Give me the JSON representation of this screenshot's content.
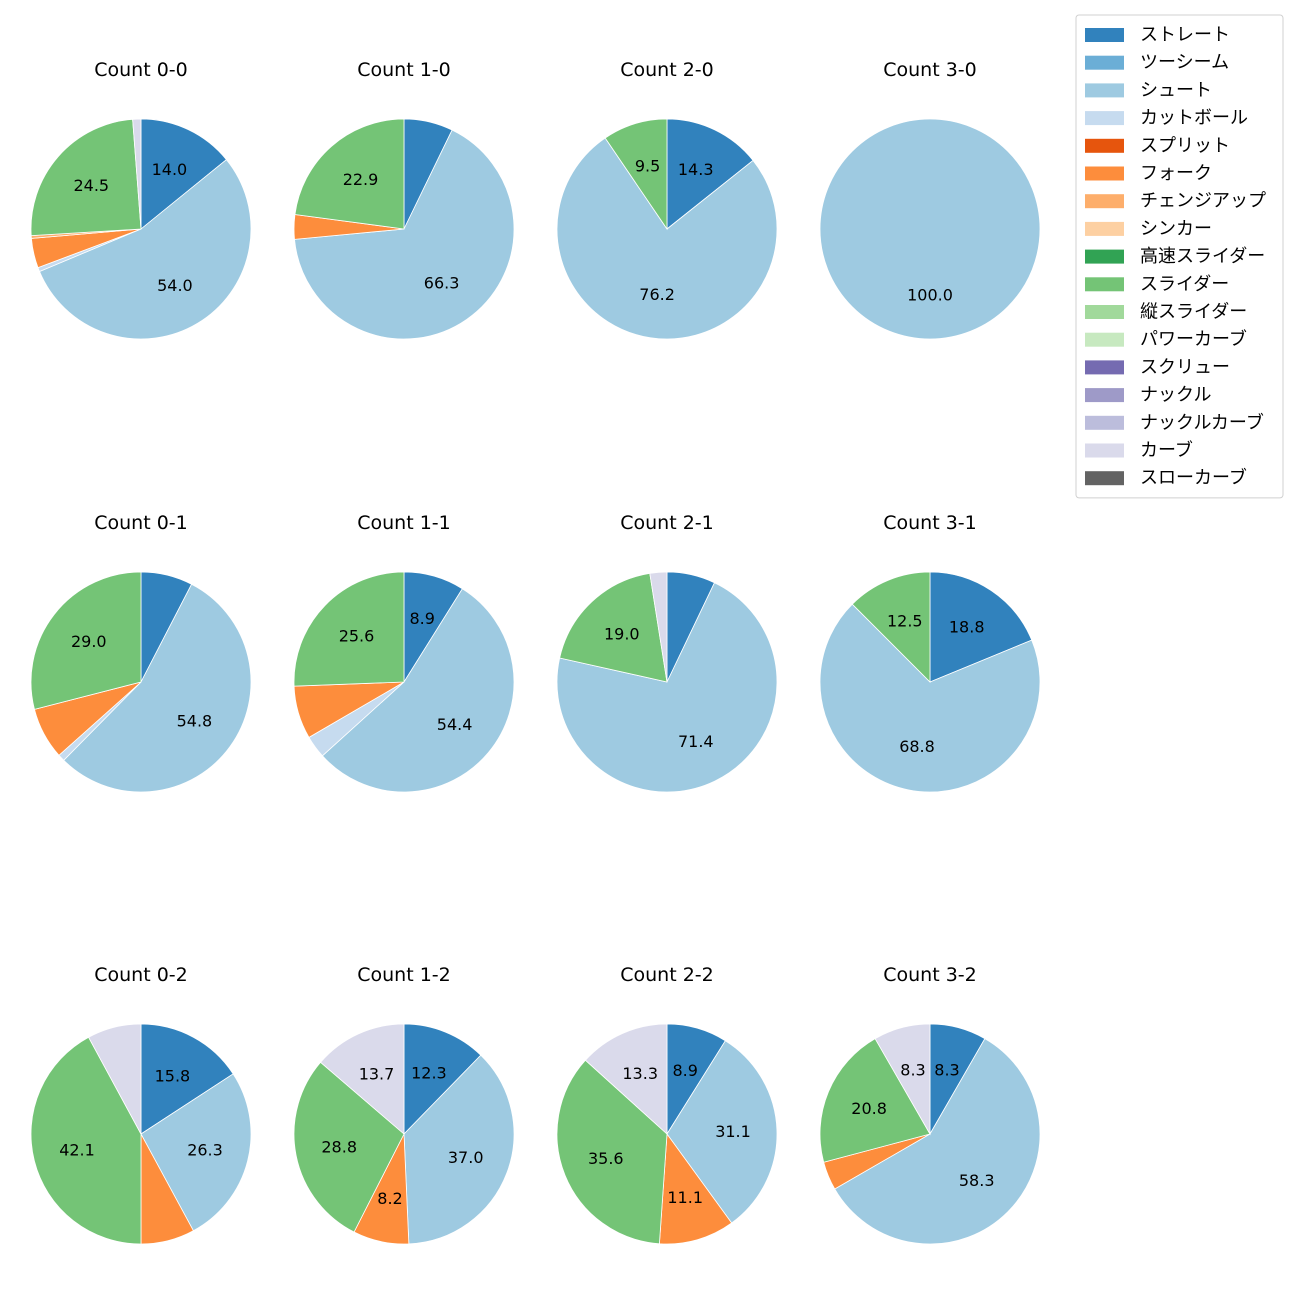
{
  "chart_data": {
    "type": "pie",
    "pitch_types": [
      {
        "name": "ストレート",
        "color": "#3182bd"
      },
      {
        "name": "ツーシーム",
        "color": "#6baed6"
      },
      {
        "name": "シュート",
        "color": "#9ecae1"
      },
      {
        "name": "カットボール",
        "color": "#c6dbef"
      },
      {
        "name": "スプリット",
        "color": "#e6550d"
      },
      {
        "name": "フォーク",
        "color": "#fd8d3c"
      },
      {
        "name": "チェンジアップ",
        "color": "#fdae6b"
      },
      {
        "name": "シンカー",
        "color": "#fdd0a2"
      },
      {
        "name": "高速スライダー",
        "color": "#31a354"
      },
      {
        "name": "スライダー",
        "color": "#74c476"
      },
      {
        "name": "縦スライダー",
        "color": "#a1d99b"
      },
      {
        "name": "パワーカーブ",
        "color": "#c7e9c0"
      },
      {
        "name": "スクリュー",
        "color": "#756bb1"
      },
      {
        "name": "ナックル",
        "color": "#9e9ac8"
      },
      {
        "name": "ナックルカーブ",
        "color": "#bcbddc"
      },
      {
        "name": "カーブ",
        "color": "#dadaeb"
      },
      {
        "name": "スローカーブ",
        "color": "#636363"
      }
    ],
    "legend_position": "top-right",
    "pies": [
      {
        "title": "Count 0-0",
        "slices": [
          {
            "pitch": "ストレート",
            "value": 14.0,
            "label": "14.0"
          },
          {
            "pitch": "シュート",
            "value": 54.0,
            "label": "54.0"
          },
          {
            "pitch": "カットボール",
            "value": 0.6,
            "label": ""
          },
          {
            "pitch": "フォーク",
            "value": 4.3,
            "label": ""
          },
          {
            "pitch": "チェンジアップ",
            "value": 0.4,
            "label": ""
          },
          {
            "pitch": "スライダー",
            "value": 24.5,
            "label": "24.5"
          },
          {
            "pitch": "カーブ",
            "value": 1.2,
            "label": ""
          }
        ]
      },
      {
        "title": "Count 1-0",
        "slices": [
          {
            "pitch": "ストレート",
            "value": 7.2,
            "label": ""
          },
          {
            "pitch": "シュート",
            "value": 66.3,
            "label": "66.3"
          },
          {
            "pitch": "フォーク",
            "value": 3.6,
            "label": ""
          },
          {
            "pitch": "スライダー",
            "value": 22.9,
            "label": "22.9"
          }
        ]
      },
      {
        "title": "Count 2-0",
        "slices": [
          {
            "pitch": "ストレート",
            "value": 14.3,
            "label": "14.3"
          },
          {
            "pitch": "シュート",
            "value": 76.2,
            "label": "76.2"
          },
          {
            "pitch": "スライダー",
            "value": 9.5,
            "label": "9.5"
          }
        ]
      },
      {
        "title": "Count 3-0",
        "slices": [
          {
            "pitch": "シュート",
            "value": 100.0,
            "label": "100.0"
          }
        ]
      },
      {
        "title": "Count 0-1",
        "slices": [
          {
            "pitch": "ストレート",
            "value": 7.6,
            "label": ""
          },
          {
            "pitch": "シュート",
            "value": 54.8,
            "label": "54.8"
          },
          {
            "pitch": "カットボール",
            "value": 1.0,
            "label": ""
          },
          {
            "pitch": "フォーク",
            "value": 7.6,
            "label": ""
          },
          {
            "pitch": "スライダー",
            "value": 29.0,
            "label": "29.0"
          }
        ]
      },
      {
        "title": "Count 1-1",
        "slices": [
          {
            "pitch": "ストレート",
            "value": 8.9,
            "label": "8.9"
          },
          {
            "pitch": "シュート",
            "value": 54.4,
            "label": "54.4"
          },
          {
            "pitch": "カットボール",
            "value": 3.3,
            "label": ""
          },
          {
            "pitch": "フォーク",
            "value": 7.8,
            "label": ""
          },
          {
            "pitch": "スライダー",
            "value": 25.6,
            "label": "25.6"
          }
        ]
      },
      {
        "title": "Count 2-1",
        "slices": [
          {
            "pitch": "ストレート",
            "value": 7.1,
            "label": ""
          },
          {
            "pitch": "シュート",
            "value": 71.4,
            "label": "71.4"
          },
          {
            "pitch": "スライダー",
            "value": 19.0,
            "label": "19.0"
          },
          {
            "pitch": "カーブ",
            "value": 2.5,
            "label": ""
          }
        ]
      },
      {
        "title": "Count 3-1",
        "slices": [
          {
            "pitch": "ストレート",
            "value": 18.8,
            "label": "18.8"
          },
          {
            "pitch": "シュート",
            "value": 68.8,
            "label": "68.8"
          },
          {
            "pitch": "スライダー",
            "value": 12.5,
            "label": "12.5"
          }
        ]
      },
      {
        "title": "Count 0-2",
        "slices": [
          {
            "pitch": "ストレート",
            "value": 15.8,
            "label": "15.8"
          },
          {
            "pitch": "シュート",
            "value": 26.3,
            "label": "26.3"
          },
          {
            "pitch": "フォーク",
            "value": 7.9,
            "label": ""
          },
          {
            "pitch": "スライダー",
            "value": 42.1,
            "label": "42.1"
          },
          {
            "pitch": "カーブ",
            "value": 7.9,
            "label": ""
          }
        ]
      },
      {
        "title": "Count 1-2",
        "slices": [
          {
            "pitch": "ストレート",
            "value": 12.3,
            "label": "12.3"
          },
          {
            "pitch": "シュート",
            "value": 37.0,
            "label": "37.0"
          },
          {
            "pitch": "フォーク",
            "value": 8.2,
            "label": "8.2"
          },
          {
            "pitch": "スライダー",
            "value": 28.8,
            "label": "28.8"
          },
          {
            "pitch": "カーブ",
            "value": 13.7,
            "label": "13.7"
          }
        ]
      },
      {
        "title": "Count 2-2",
        "slices": [
          {
            "pitch": "ストレート",
            "value": 8.9,
            "label": "8.9"
          },
          {
            "pitch": "シュート",
            "value": 31.1,
            "label": "31.1"
          },
          {
            "pitch": "フォーク",
            "value": 11.1,
            "label": "11.1"
          },
          {
            "pitch": "スライダー",
            "value": 35.6,
            "label": "35.6"
          },
          {
            "pitch": "カーブ",
            "value": 13.3,
            "label": "13.3"
          }
        ]
      },
      {
        "title": "Count 3-2",
        "slices": [
          {
            "pitch": "ストレート",
            "value": 8.3,
            "label": "8.3"
          },
          {
            "pitch": "シュート",
            "value": 58.3,
            "label": "58.3"
          },
          {
            "pitch": "フォーク",
            "value": 4.2,
            "label": ""
          },
          {
            "pitch": "スライダー",
            "value": 20.8,
            "label": "20.8"
          },
          {
            "pitch": "カーブ",
            "value": 8.3,
            "label": "8.3"
          }
        ]
      }
    ]
  }
}
